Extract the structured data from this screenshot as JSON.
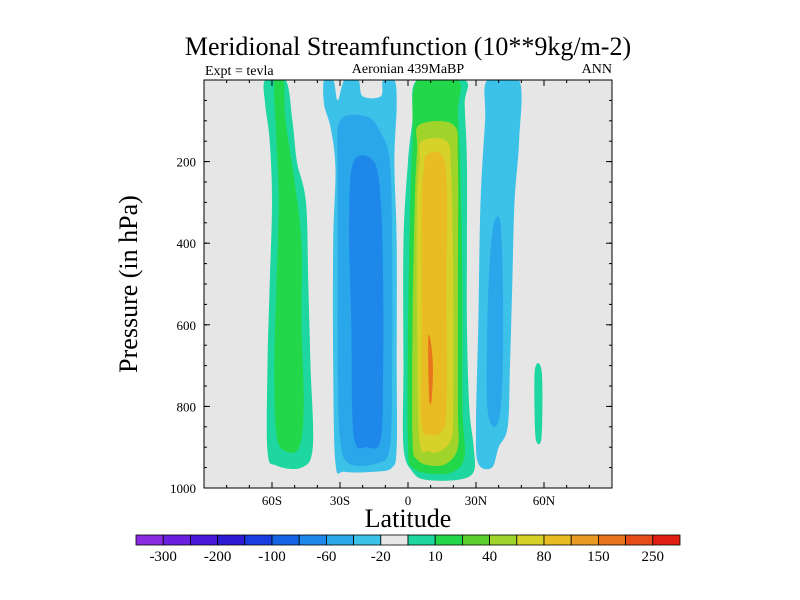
{
  "chart_data": {
    "type": "heatmap",
    "title": "Meridional Streamfunction (10**9kg/m-2)",
    "left_string": "Expt = tevla",
    "center_string": "Aeronian 439MaBP",
    "right_string": "ANN",
    "xlabel": "Latitude",
    "ylabel": "Pressure (in hPa)",
    "xlim": [
      -90,
      90
    ],
    "ylim": [
      1000,
      0
    ],
    "x_ticks": [
      {
        "value": -60,
        "label": "60S"
      },
      {
        "value": -30,
        "label": "30S"
      },
      {
        "value": 0,
        "label": "0"
      },
      {
        "value": 30,
        "label": "30N"
      },
      {
        "value": 60,
        "label": "60N"
      }
    ],
    "y_ticks": [
      {
        "value": 200,
        "label": "200"
      },
      {
        "value": 400,
        "label": "400"
      },
      {
        "value": 600,
        "label": "600"
      },
      {
        "value": 800,
        "label": "800"
      },
      {
        "value": 1000,
        "label": "1000"
      }
    ],
    "missing_color": "#e6e6e6",
    "colorbar": {
      "colors": [
        "#8a2be2",
        "#6a1fe0",
        "#4b19d8",
        "#2e1bd4",
        "#1a3de0",
        "#1663e6",
        "#1e87ea",
        "#2aa6ea",
        "#3cc2e8",
        "#e8e8e8",
        "#1ed6a0",
        "#22d84a",
        "#5ad02e",
        "#a0d42a",
        "#d6d22a",
        "#e8bc22",
        "#e89a22",
        "#e8741e",
        "#e64c1a",
        "#e01e14"
      ],
      "labels": [
        "-300",
        "-200",
        "-100",
        "-60",
        "-20",
        "10",
        "40",
        "80",
        "150",
        "250"
      ]
    },
    "regions": [
      {
        "name": "nh-polar-cell",
        "value": 10,
        "color": "#1ed6a0",
        "outline": [
          [
            -63,
            0
          ],
          [
            -54,
            0
          ],
          [
            -51,
            100
          ],
          [
            -49,
            200
          ],
          [
            -45,
            300
          ],
          [
            -44,
            500
          ],
          [
            -43,
            700
          ],
          [
            -42,
            900
          ],
          [
            -47,
            950
          ],
          [
            -58,
            945
          ],
          [
            -62,
            910
          ],
          [
            -62,
            700
          ],
          [
            -61,
            500
          ],
          [
            -60,
            300
          ],
          [
            -61,
            150
          ],
          [
            -63,
            60
          ]
        ]
      },
      {
        "name": "sh-polar-cell-core",
        "value": 40,
        "color": "#22d84a",
        "outline": [
          [
            -59,
            0
          ],
          [
            -55,
            0
          ],
          [
            -54,
            100
          ],
          [
            -50,
            250
          ],
          [
            -47,
            400
          ],
          [
            -47,
            600
          ],
          [
            -46,
            800
          ],
          [
            -48,
            900
          ],
          [
            -54,
            910
          ],
          [
            -58,
            870
          ],
          [
            -59,
            700
          ],
          [
            -58,
            500
          ],
          [
            -57,
            300
          ],
          [
            -58,
            150
          ]
        ]
      },
      {
        "name": "ferrel-cell-outer",
        "value": -20,
        "color": "#3cc2e8",
        "outline": [
          [
            -37,
            0
          ],
          [
            -33,
            0
          ],
          [
            -31,
            50
          ],
          [
            -28,
            0
          ],
          [
            -22,
            0
          ],
          [
            -20,
            40
          ],
          [
            -12,
            40
          ],
          [
            -11,
            0
          ],
          [
            -6,
            0
          ],
          [
            -5,
            60
          ],
          [
            -6,
            200
          ],
          [
            -5,
            400
          ],
          [
            -5,
            700
          ],
          [
            -5,
            900
          ],
          [
            -7,
            950
          ],
          [
            -15,
            960
          ],
          [
            -28,
            960
          ],
          [
            -32,
            940
          ],
          [
            -33,
            700
          ],
          [
            -33,
            400
          ],
          [
            -32,
            220
          ],
          [
            -34,
            120
          ],
          [
            -37,
            60
          ]
        ]
      },
      {
        "name": "ferrel-cell-mid",
        "value": -60,
        "color": "#2aa6ea",
        "outline": [
          [
            -30,
            100
          ],
          [
            -18,
            90
          ],
          [
            -12,
            130
          ],
          [
            -8,
            200
          ],
          [
            -7,
            400
          ],
          [
            -7,
            700
          ],
          [
            -8,
            900
          ],
          [
            -14,
            940
          ],
          [
            -26,
            940
          ],
          [
            -30,
            880
          ],
          [
            -31,
            700
          ],
          [
            -31,
            400
          ],
          [
            -31,
            220
          ]
        ]
      },
      {
        "name": "ferrel-cell-core",
        "value": -100,
        "color": "#1e87ea",
        "outline": [
          [
            -24,
            200
          ],
          [
            -15,
            200
          ],
          [
            -12,
            300
          ],
          [
            -11,
            500
          ],
          [
            -11,
            700
          ],
          [
            -12,
            880
          ],
          [
            -18,
            900
          ],
          [
            -24,
            870
          ],
          [
            -25,
            600
          ],
          [
            -26,
            350
          ]
        ]
      },
      {
        "name": "hadley-cell-outer",
        "value": 10,
        "color": "#1ed6a0",
        "outline": [
          [
            4,
            0
          ],
          [
            25,
            0
          ],
          [
            25,
            60
          ],
          [
            26,
            200
          ],
          [
            26,
            400
          ],
          [
            26,
            600
          ],
          [
            27,
            800
          ],
          [
            29,
            900
          ],
          [
            29,
            960
          ],
          [
            22,
            980
          ],
          [
            8,
            980
          ],
          [
            2,
            960
          ],
          [
            -2,
            900
          ],
          [
            -2,
            700
          ],
          [
            -2,
            400
          ],
          [
            0,
            200
          ],
          [
            2,
            100
          ]
        ]
      },
      {
        "name": "hadley-cell-40",
        "value": 40,
        "color": "#22d84a",
        "outline": [
          [
            4,
            0
          ],
          [
            22,
            0
          ],
          [
            22,
            80
          ],
          [
            23,
            200
          ],
          [
            24,
            500
          ],
          [
            24,
            800
          ],
          [
            25,
            920
          ],
          [
            20,
            960
          ],
          [
            10,
            965
          ],
          [
            2,
            950
          ],
          [
            0,
            900
          ],
          [
            0,
            600
          ],
          [
            1,
            300
          ],
          [
            2,
            150
          ]
        ]
      },
      {
        "name": "hadley-cell-80",
        "value": 80,
        "color": "#a0d42a",
        "outline": [
          [
            5,
            110
          ],
          [
            20,
            110
          ],
          [
            22,
            200
          ],
          [
            22,
            500
          ],
          [
            22,
            800
          ],
          [
            22,
            900
          ],
          [
            17,
            940
          ],
          [
            10,
            945
          ],
          [
            4,
            930
          ],
          [
            2,
            880
          ],
          [
            2,
            600
          ],
          [
            3,
            300
          ],
          [
            4,
            170
          ]
        ]
      },
      {
        "name": "hadley-cell-150",
        "value": 150,
        "color": "#d6d22a",
        "outline": [
          [
            6,
            150
          ],
          [
            17,
            150
          ],
          [
            19,
            220
          ],
          [
            20,
            500
          ],
          [
            20,
            800
          ],
          [
            19,
            880
          ],
          [
            14,
            910
          ],
          [
            9,
            910
          ],
          [
            5,
            880
          ],
          [
            4,
            600
          ],
          [
            4,
            300
          ],
          [
            5,
            200
          ]
        ]
      },
      {
        "name": "hadley-cell-core",
        "value": 150,
        "color": "#e8bc22",
        "outline": [
          [
            8,
            185
          ],
          [
            14,
            180
          ],
          [
            17,
            240
          ],
          [
            17,
            500
          ],
          [
            17,
            800
          ],
          [
            15,
            860
          ],
          [
            10,
            870
          ],
          [
            6,
            840
          ],
          [
            6,
            600
          ],
          [
            6,
            300
          ],
          [
            7,
            220
          ]
        ]
      },
      {
        "name": "hadley-cell-peak",
        "value": 250,
        "color": "#e8741e",
        "outline": [
          [
            9,
            630
          ],
          [
            10,
            640
          ],
          [
            11,
            700
          ],
          [
            10.5,
            780
          ],
          [
            9.5,
            790
          ],
          [
            9,
            720
          ]
        ]
      },
      {
        "name": "nh-ferrel-cell-outer",
        "value": -20,
        "color": "#3cc2e8",
        "outline": [
          [
            35,
            0
          ],
          [
            49,
            0
          ],
          [
            49,
            150
          ],
          [
            47,
            300
          ],
          [
            46,
            500
          ],
          [
            45,
            700
          ],
          [
            44,
            850
          ],
          [
            40,
            900
          ],
          [
            37,
            950
          ],
          [
            31,
            940
          ],
          [
            30,
            850
          ],
          [
            31,
            600
          ],
          [
            32,
            300
          ],
          [
            34,
            100
          ]
        ]
      },
      {
        "name": "nh-ferrel-cell-core",
        "value": -60,
        "color": "#2aa6ea",
        "outline": [
          [
            38,
            350
          ],
          [
            41,
            360
          ],
          [
            42,
            600
          ],
          [
            41,
            800
          ],
          [
            38,
            850
          ],
          [
            35,
            800
          ],
          [
            35,
            600
          ],
          [
            36,
            450
          ]
        ]
      },
      {
        "name": "nh-polar-sliver",
        "value": 10,
        "color": "#1ed6a0",
        "outline": [
          [
            56,
            710
          ],
          [
            59,
            715
          ],
          [
            59,
            870
          ],
          [
            57,
            890
          ],
          [
            56,
            850
          ]
        ]
      }
    ]
  }
}
